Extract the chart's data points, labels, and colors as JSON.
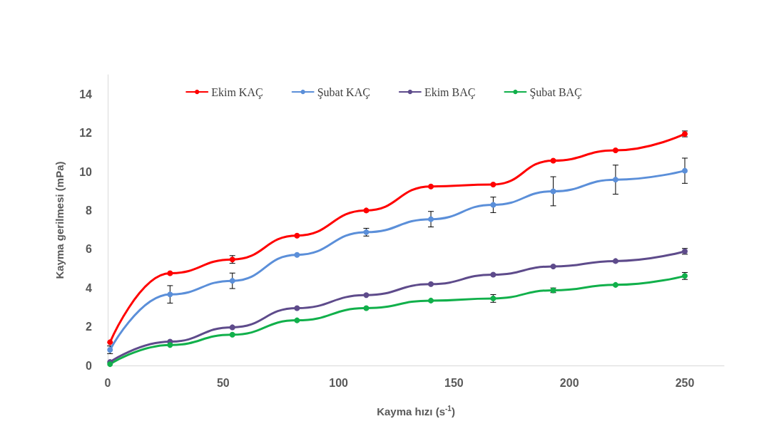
{
  "chart_data": {
    "type": "line",
    "xlabel": "Kayma hızı (s$^{-1}$)",
    "ylabel": "Kayma gerilmesi (mPa)",
    "x": [
      1,
      27,
      54,
      82,
      112,
      140,
      167,
      193,
      220,
      250
    ],
    "xlim": [
      0,
      267
    ],
    "xticks": [
      0,
      50,
      100,
      150,
      200,
      250
    ],
    "ylim": [
      0,
      15
    ],
    "yticks": [
      0,
      2,
      4,
      6,
      8,
      10,
      12,
      14
    ],
    "grid": false,
    "legend": "top",
    "marker": "circle",
    "line_style": "solid",
    "series": [
      {
        "name": "Ekim KAÇ",
        "color": "#ff0000",
        "values": [
          1.2,
          4.76,
          5.47,
          6.7,
          8.0,
          9.24,
          9.34,
          10.57,
          11.1,
          11.95
        ],
        "errors": [
          null,
          null,
          0.2,
          null,
          null,
          null,
          null,
          null,
          null,
          0.15
        ]
      },
      {
        "name": "Şubat KAÇ",
        "color": "#5b8fd9",
        "values": [
          0.81,
          3.67,
          4.37,
          5.71,
          6.88,
          7.55,
          8.29,
          8.99,
          9.59,
          10.05
        ],
        "errors": [
          0.2,
          0.45,
          0.4,
          null,
          0.2,
          0.4,
          0.4,
          0.75,
          0.75,
          0.65
        ]
      },
      {
        "name": "Ekim BAÇ",
        "color": "#5e4b8b",
        "values": [
          0.18,
          1.23,
          1.97,
          2.96,
          3.63,
          4.2,
          4.69,
          5.11,
          5.39,
          5.89
        ],
        "errors": [
          null,
          null,
          null,
          null,
          null,
          null,
          null,
          null,
          null,
          0.15
        ]
      },
      {
        "name": "Şubat BAÇ",
        "color": "#11b04b",
        "values": [
          0.07,
          1.06,
          1.59,
          2.33,
          2.96,
          3.35,
          3.46,
          3.88,
          4.16,
          4.62
        ],
        "errors": [
          null,
          null,
          null,
          null,
          null,
          null,
          0.2,
          0.12,
          null,
          0.18
        ]
      }
    ]
  }
}
